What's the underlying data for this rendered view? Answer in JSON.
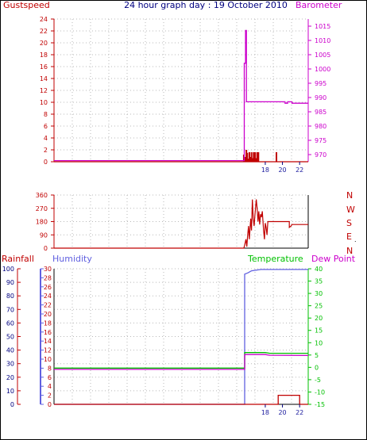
{
  "title": "24 hour graph day : 19 October 2010",
  "colors": {
    "red": "#c00000",
    "magenta": "#cc00cc",
    "navy": "#000080",
    "blue": "#6060e0",
    "green": "#00c000",
    "grid": "#b8b8b8",
    "tickblue": "#2020a0"
  },
  "x_ticks": [
    "18",
    "20",
    "22"
  ],
  "chart_data": [
    {
      "type": "line",
      "id": "wind-pressure",
      "left_label": "Gustspeed",
      "right_label": "Barometer",
      "left_ticks": [
        "0",
        "2",
        "4",
        "6",
        "8",
        "10",
        "12",
        "14",
        "16",
        "18",
        "20",
        "22",
        "24"
      ],
      "right_ticks": [
        "970",
        "975",
        "980",
        "985",
        "990",
        "995",
        "1000",
        "1005",
        "1010",
        "1015"
      ],
      "left_ylim": [
        0,
        24
      ],
      "right_ylim": [
        967.5,
        1017.5
      ],
      "xlim": [
        -6.6,
        23
      ],
      "series": [
        {
          "axis": "right",
          "color": "magenta",
          "points": [
            [
              -6.6,
              967.9
            ],
            [
              15.55,
              967.9
            ],
            [
              15.55,
              1002
            ],
            [
              15.7,
              1002
            ],
            [
              15.7,
              1013.5
            ],
            [
              15.8,
              1013.5
            ],
            [
              15.8,
              988.5
            ],
            [
              20.3,
              988.5
            ],
            [
              20.3,
              988
            ],
            [
              20.6,
              988
            ],
            [
              20.6,
              988.5
            ],
            [
              21.1,
              988.5
            ],
            [
              21.1,
              988
            ],
            [
              23,
              988
            ]
          ]
        },
        {
          "axis": "left",
          "color": "red",
          "points": [
            [
              -6.6,
              0
            ],
            [
              23,
              0
            ]
          ]
        }
      ],
      "gust_bars": [
        [
          15.5,
          1.2
        ],
        [
          15.65,
          0.8
        ],
        [
          15.8,
          2
        ],
        [
          15.9,
          1.5
        ],
        [
          16.05,
          0.5
        ],
        [
          16.15,
          1.6
        ],
        [
          16.25,
          0.8
        ],
        [
          16.4,
          1.6
        ],
        [
          16.5,
          0.6
        ],
        [
          16.65,
          1.6
        ],
        [
          16.8,
          1.6
        ],
        [
          16.95,
          0.6
        ],
        [
          17.05,
          1.6
        ],
        [
          17.2,
          1.6
        ],
        [
          19.3,
          1.6
        ]
      ]
    },
    {
      "type": "line",
      "id": "wind-direction",
      "left_ticks": [
        "0",
        "90",
        "180",
        "270",
        "360"
      ],
      "right_labels": [
        "N",
        "W",
        "S",
        "E",
        "N"
      ],
      "left_ylim": [
        0,
        360
      ],
      "xlim": [
        -6.6,
        23
      ],
      "series": [
        {
          "axis": "left",
          "color": "red",
          "points": [
            [
              -6.6,
              0
            ],
            [
              15.5,
              0
            ],
            [
              15.6,
              20
            ],
            [
              15.75,
              60
            ],
            [
              15.85,
              10
            ],
            [
              15.95,
              90
            ],
            [
              16.05,
              150
            ],
            [
              16.15,
              60
            ],
            [
              16.3,
              200
            ],
            [
              16.4,
              120
            ],
            [
              16.5,
              330
            ],
            [
              16.6,
              200
            ],
            [
              16.7,
              150
            ],
            [
              16.8,
              230
            ],
            [
              16.95,
              330
            ],
            [
              17.05,
              270
            ],
            [
              17.15,
              180
            ],
            [
              17.25,
              250
            ],
            [
              17.35,
              160
            ],
            [
              17.45,
              230
            ],
            [
              17.55,
              210
            ],
            [
              17.65,
              250
            ],
            [
              17.8,
              120
            ],
            [
              17.9,
              60
            ],
            [
              18.0,
              170
            ],
            [
              18.1,
              140
            ],
            [
              18.2,
              90
            ],
            [
              18.3,
              180
            ],
            [
              20.3,
              180
            ],
            [
              20.6,
              180
            ],
            [
              20.8,
              180
            ],
            [
              20.8,
              140
            ],
            [
              21.0,
              150
            ],
            [
              21.1,
              160
            ],
            [
              23,
              160
            ]
          ]
        }
      ]
    },
    {
      "type": "line",
      "id": "rain-humidity-temperature",
      "rainfall_label": "Rainfall",
      "humidity_label": "Humidity",
      "temperature_label": "Temperature",
      "dewpoint_label": "Dew Point",
      "rainfall_ticks": [
        "0",
        "10",
        "20",
        "30",
        "40",
        "50",
        "60",
        "70",
        "80",
        "90",
        "100"
      ],
      "humidity_ticks": [
        "0",
        "2",
        "4",
        "6",
        "8",
        "10",
        "12",
        "14",
        "16",
        "18",
        "20",
        "22",
        "24",
        "26",
        "28",
        "30"
      ],
      "temperature_ticks": [
        "-15",
        "-10",
        "-5",
        "0",
        "5",
        "10",
        "15",
        "20",
        "25",
        "30",
        "35",
        "40"
      ],
      "humidity_ylim": [
        0,
        100
      ],
      "rain_ylim": [
        0,
        30
      ],
      "temp_ylim": [
        -15,
        40
      ],
      "xlim": [
        -6.6,
        23
      ],
      "series": [
        {
          "name": "Humidity",
          "axis": "humidity",
          "color": "blue",
          "points": [
            [
              -6.6,
              0
            ],
            [
              15.6,
              0
            ],
            [
              15.6,
              96
            ],
            [
              16.0,
              97
            ],
            [
              16.4,
              98.5
            ],
            [
              17.5,
              99.5
            ],
            [
              23,
              99.5
            ]
          ]
        },
        {
          "name": "Temperature",
          "axis": "temp",
          "color": "green",
          "points": [
            [
              -6.6,
              -0.3
            ],
            [
              15.6,
              -0.3
            ],
            [
              15.6,
              6
            ],
            [
              18.0,
              6
            ],
            [
              18.5,
              5.7
            ],
            [
              23,
              5.7
            ]
          ]
        },
        {
          "name": "Dew Point",
          "axis": "temp",
          "color": "magenta",
          "points": [
            [
              -6.6,
              -0.8
            ],
            [
              15.6,
              -0.8
            ],
            [
              15.6,
              5.2
            ],
            [
              18.0,
              5.2
            ],
            [
              18.5,
              4.9
            ],
            [
              23,
              4.8
            ]
          ]
        },
        {
          "name": "Rainfall",
          "axis": "rain",
          "color": "red",
          "points": [
            [
              -6.6,
              0
            ],
            [
              19.5,
              0
            ],
            [
              19.5,
              2
            ],
            [
              22.0,
              2
            ],
            [
              22.0,
              0
            ],
            [
              23,
              0
            ]
          ]
        }
      ]
    }
  ]
}
